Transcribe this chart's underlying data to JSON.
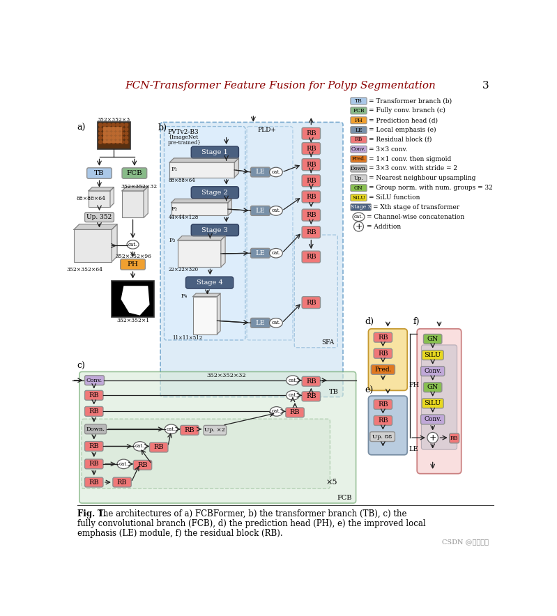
{
  "title": "FCN-Transformer Feature Fusion for Polyp Segmentation",
  "page_number": "3",
  "fig_caption_bold": "Fig. 1.",
  "fig_caption_rest": " The architectures of a) FCBFormer, b) the transformer branch (TB), c) the\nfully convolutional branch (FCB), d) the prediction head (PH), e) the improved local\nemphasis (LE) module, f) the residual block (RB).",
  "watermark": "CSDN @蓝海渔夫",
  "colors": {
    "TB_blue": "#aac8e8",
    "FCB_green": "#88bb88",
    "PH_orange": "#f0a030",
    "LE_steel": "#7890a8",
    "RB_pink": "#f07878",
    "Conv_purple": "#c0a8d8",
    "Pred_orange": "#e07820",
    "Down_gray": "#b8b8b8",
    "Up_lightgray": "#d0d0d0",
    "GN_green": "#88c050",
    "SiLU_yellow": "#e8d820",
    "StageX_darkblue": "#4a6080",
    "bg_blue_light": "#d0e4f4",
    "bg_green_light": "#d8ead8",
    "bg_pink_light": "#f8d8d8",
    "dashed_border_blue": "#5090c0",
    "dashed_border_green": "#60a060"
  }
}
